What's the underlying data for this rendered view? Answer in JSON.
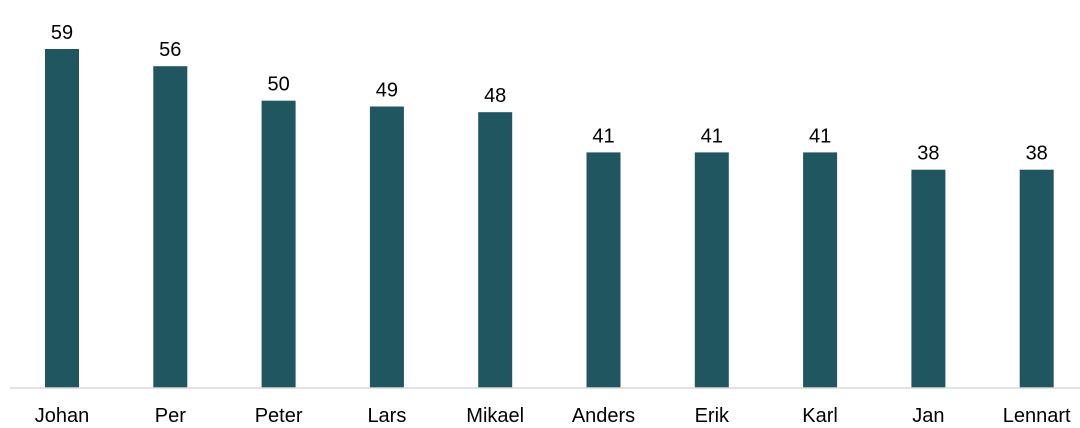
{
  "chart_data": {
    "type": "bar",
    "categories": [
      "Johan",
      "Per",
      "Peter",
      "Lars",
      "Mikael",
      "Anders",
      "Erik",
      "Karl",
      "Jan",
      "Lennart"
    ],
    "values": [
      59,
      56,
      50,
      49,
      48,
      41,
      41,
      41,
      38,
      38
    ],
    "title": "",
    "xlabel": "",
    "ylabel": "",
    "ylim": [
      0,
      59
    ],
    "grid": false,
    "legend": "none",
    "data_labels": true,
    "colors": {
      "bar": "#1f5660",
      "axis": "#d9d9d9",
      "text": "#000000"
    }
  }
}
